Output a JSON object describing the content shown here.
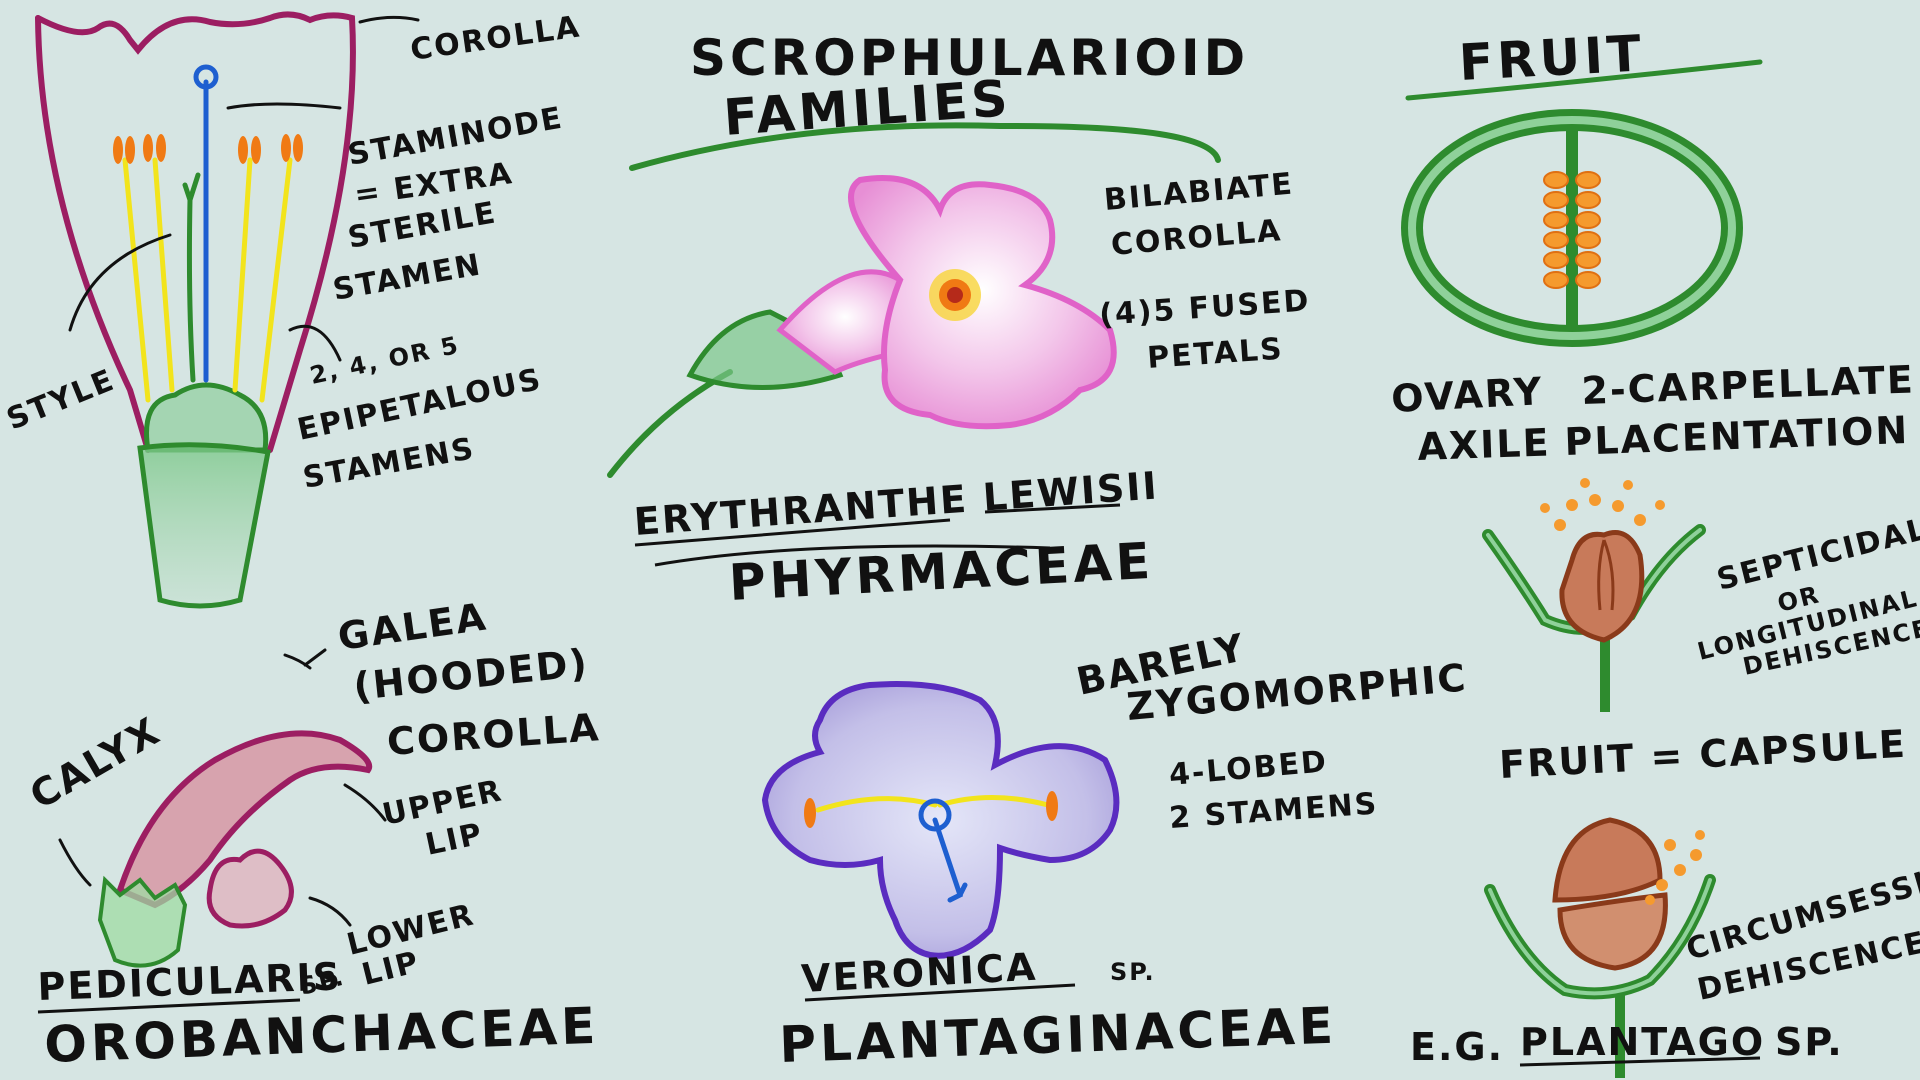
{
  "title": {
    "line1": "SCROPHULARIOID",
    "line2": "FAMILIES"
  },
  "flower_anatomy": {
    "corolla": "COROLLA",
    "staminode": [
      "STAMINODE",
      "= EXTRA",
      "STERILE",
      "STAMEN"
    ],
    "style": "STYLE",
    "stamens": [
      "2, 4, OR 5",
      "EPIPETALOUS",
      "STAMENS"
    ]
  },
  "erythranthe": {
    "corolla_label": [
      "BILABIATE",
      "COROLLA"
    ],
    "petals_label": [
      "(4)5 FUSED",
      "PETALS"
    ],
    "genus": "ERYTHRANTHE LEWISII",
    "family": "PHYRMACEAE"
  },
  "pedicularis": {
    "galea": [
      "GALEA",
      "(HOODED)",
      "COROLLA"
    ],
    "calyx": "CALYX",
    "upper_lip": [
      "UPPER",
      "LIP"
    ],
    "lower_lip": [
      "LOWER",
      "LIP"
    ],
    "genus": "PEDICULARIS",
    "sp": "SP.",
    "family": "OROBANCHACEAE"
  },
  "veronica": {
    "symmetry": [
      "BARELY",
      "ZYGOMORPHIC"
    ],
    "lobes": "4-LOBED",
    "stamens": "2 STAMENS",
    "genus": "VERONICA",
    "sp": "SP.",
    "family": "PLANTAGINACEAE"
  },
  "fruit": {
    "title": "FRUIT",
    "ovary_label": [
      "OVARY",
      "2-CARPELLATE"
    ],
    "placentation": [
      "AXILE",
      "PLACENTATION"
    ],
    "septicidal": [
      "SEPTICIDAL",
      "OR",
      "LONGITUDINAL",
      "DEHISCENCE"
    ],
    "capsule": "FRUIT = CAPSULE",
    "circumsessile": [
      "CIRCUMSESSILE",
      "DEHISCENCE"
    ],
    "example_prefix": "E.G.",
    "example_genus": "PLANTAGO",
    "example_sp": "SP."
  },
  "colors": {
    "background": "#d6e5e3",
    "corolla": "#9c1e62",
    "green": "#2e8b2e",
    "anther": "#f07a14",
    "filament": "#f2e41c",
    "style_blue": "#1e5fd0",
    "pink": "#e062c8",
    "purple": "#5a2cc0",
    "seed_brown": "#8a3a1a"
  }
}
